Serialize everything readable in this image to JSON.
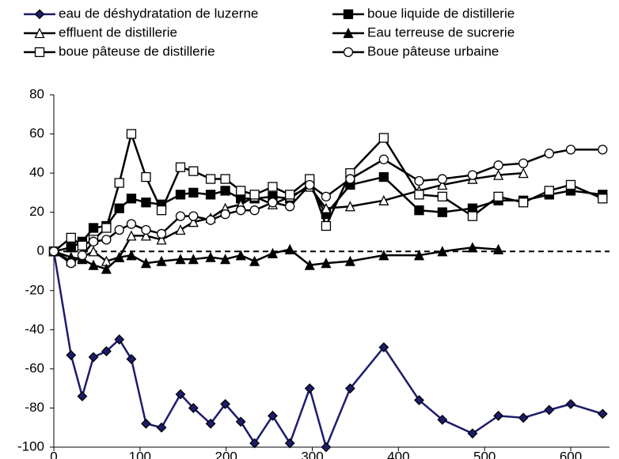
{
  "chart_data": {
    "type": "line",
    "xlim": [
      0,
      645
    ],
    "xticks": [
      0,
      100,
      200,
      300,
      400,
      500,
      600
    ],
    "ylim": [
      -100,
      80
    ],
    "yticks": [
      -100,
      -80,
      -60,
      -40,
      -20,
      0,
      20,
      40,
      60,
      80
    ],
    "grid": false,
    "zero_line": "dashed",
    "legend": "top",
    "series": [
      {
        "name": "eau de déshydratation de luzerne",
        "color": "#1c1c6e",
        "marker": "diamond",
        "x": [
          0,
          20,
          33,
          46,
          61,
          76,
          90,
          107,
          125,
          147,
          162,
          182,
          199,
          217,
          233,
          254,
          274,
          297,
          316,
          344,
          383,
          424,
          451,
          486,
          516,
          545,
          575,
          600,
          637
        ],
        "values": [
          0,
          -53,
          -74,
          -54,
          -51,
          -45,
          -55,
          -88,
          -90,
          -73,
          -80,
          -88,
          -78,
          -87,
          -98,
          -84,
          -98,
          -70,
          -100,
          -70,
          -49,
          -76,
          -86,
          -93,
          -84,
          -85,
          -81,
          -78,
          -83
        ]
      },
      {
        "name": "boue liquide de distillerie",
        "color": "#000000",
        "marker": "square-filled",
        "x": [
          0,
          20,
          33,
          46,
          61,
          76,
          90,
          107,
          125,
          147,
          162,
          182,
          199,
          217,
          233,
          254,
          274,
          297,
          316,
          344,
          383,
          424,
          451,
          486,
          516,
          545,
          575,
          600,
          637
        ],
        "values": [
          0,
          2,
          5,
          12,
          13,
          22,
          27,
          25,
          24,
          29,
          30,
          29,
          31,
          27,
          27,
          28,
          27,
          34,
          19,
          34,
          38,
          21,
          20,
          22,
          26,
          26,
          29,
          31,
          29
        ]
      },
      {
        "name": "effluent de distillerie",
        "color": "#000000",
        "marker": "triangle-open",
        "x": [
          0,
          20,
          33,
          46,
          61,
          76,
          90,
          107,
          125,
          147,
          162,
          182,
          199,
          217,
          233,
          254,
          274,
          297,
          316,
          344,
          383,
          424,
          451,
          486,
          516,
          545
        ],
        "values": [
          0,
          -5,
          -3,
          0,
          -5,
          -3,
          8,
          8,
          6,
          11,
          15,
          17,
          22,
          24,
          28,
          24,
          28,
          33,
          22,
          23,
          26,
          31,
          34,
          37,
          39,
          40
        ]
      },
      {
        "name": "Eau terreuse de sucrerie",
        "color": "#000000",
        "marker": "triangle-filled",
        "x": [
          0,
          20,
          33,
          46,
          61,
          76,
          90,
          107,
          125,
          147,
          162,
          182,
          199,
          217,
          233,
          254,
          274,
          297,
          316,
          344,
          383,
          424,
          451,
          486,
          516
        ],
        "values": [
          0,
          -3,
          -4,
          -7,
          -9,
          -3,
          -2,
          -6,
          -5,
          -4,
          -4,
          -3,
          -4,
          -2,
          -5,
          -1,
          1,
          -7,
          -6,
          -5,
          -2,
          -2,
          0,
          2,
          1
        ]
      },
      {
        "name": "boue pâteuse de distillerie",
        "color": "#000000",
        "marker": "square-open",
        "x": [
          0,
          20,
          33,
          46,
          61,
          76,
          90,
          107,
          125,
          147,
          162,
          182,
          199,
          217,
          233,
          254,
          274,
          297,
          316,
          344,
          383,
          424,
          451,
          486,
          516,
          545,
          575,
          600,
          637
        ],
        "values": [
          0,
          7,
          3,
          6,
          12,
          35,
          60,
          38,
          21,
          43,
          41,
          37,
          37,
          31,
          29,
          33,
          29,
          37,
          13,
          40,
          58,
          29,
          28,
          18,
          28,
          25,
          31,
          34,
          27
        ]
      },
      {
        "name": "Boue pâteuse urbaine",
        "color": "#000000",
        "marker": "circle-open",
        "x": [
          0,
          20,
          33,
          46,
          61,
          76,
          90,
          107,
          125,
          147,
          162,
          182,
          199,
          217,
          233,
          254,
          274,
          297,
          316,
          344,
          383,
          424,
          451,
          486,
          516,
          545,
          575,
          600,
          637
        ],
        "values": [
          0,
          -6,
          -2,
          5,
          6,
          11,
          14,
          11,
          9,
          18,
          18,
          16,
          19,
          21,
          21,
          25,
          23,
          34,
          28,
          37,
          47,
          36,
          37,
          39,
          44,
          45,
          50,
          52,
          52
        ]
      }
    ]
  }
}
